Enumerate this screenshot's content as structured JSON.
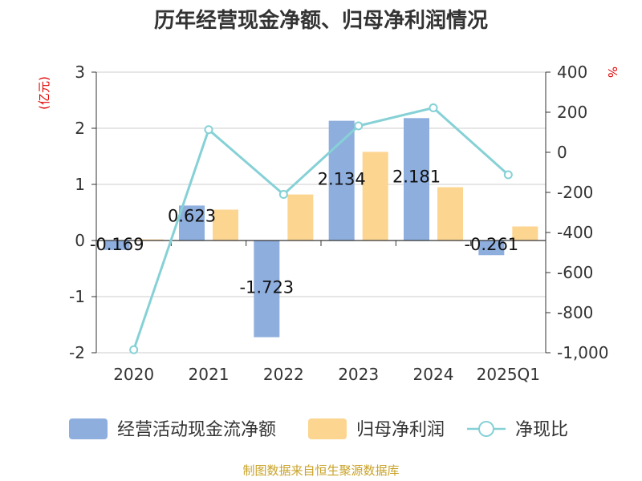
{
  "chart_data": {
    "type": "bar",
    "title": "历年经营现金净额、归母净利润情况",
    "categories": [
      "2020",
      "2021",
      "2022",
      "2023",
      "2024",
      "2025Q1"
    ],
    "left_axis": {
      "unit": "(亿元)",
      "ylim": [
        -2,
        3
      ],
      "ticks": [
        "3",
        "2",
        "1",
        "0",
        "-1",
        "-2"
      ],
      "tick_values": [
        3,
        2,
        1,
        0,
        -1,
        -2
      ]
    },
    "right_axis": {
      "unit": "%",
      "ylim": [
        -1000,
        400
      ],
      "ticks": [
        "400",
        "200",
        "0",
        "-200",
        "-400",
        "-600",
        "-800",
        "-1,000"
      ],
      "tick_values": [
        400,
        200,
        0,
        -200,
        -400,
        -600,
        -800,
        -1000
      ]
    },
    "series": [
      {
        "name": "经营活动现金流净额",
        "type": "bar",
        "axis": "left",
        "color": "#8eaede",
        "values": [
          -0.169,
          0.623,
          -1.723,
          2.134,
          2.181,
          -0.261
        ],
        "labels": [
          "-0.169",
          "0.623",
          "-1.723",
          "2.134",
          "2.181",
          "-0.261"
        ]
      },
      {
        "name": "归母净利润",
        "type": "bar",
        "axis": "left",
        "color": "#fcd591",
        "values": [
          0.02,
          0.55,
          0.82,
          1.58,
          0.95,
          0.25
        ]
      },
      {
        "name": "净现比",
        "type": "line",
        "axis": "right",
        "color": "#86d1d6",
        "values": [
          -985,
          113,
          -210,
          132,
          222,
          -112
        ]
      }
    ],
    "grid": true,
    "legend_position": "bottom"
  },
  "footer": {
    "source": "制图数据来自恒生聚源数据库"
  }
}
